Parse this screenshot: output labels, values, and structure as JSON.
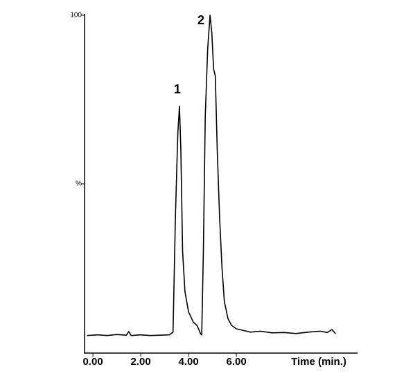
{
  "chart_data": {
    "type": "line",
    "x_label": "Time (min.)",
    "xlim": [
      -0.35,
      11.0
    ],
    "ylim": [
      0,
      100
    ],
    "xticks": [
      {
        "value": 0,
        "label": "0.00"
      },
      {
        "value": 2,
        "label": "2.00"
      },
      {
        "value": 4,
        "label": "4.00"
      },
      {
        "value": 6,
        "label": "6.00"
      }
    ],
    "yticks": [
      100,
      {
        "value": 50,
        "label": "%"
      }
    ],
    "annotations": [
      {
        "text": "1",
        "x": 3.53,
        "y": 77.8
      },
      {
        "text": "2",
        "x": 4.52,
        "y": 98.3
      }
    ],
    "series": [
      {
        "color": "#000000",
        "x": [
          -0.25,
          0.2,
          0.6,
          1.0,
          1.4,
          1.5,
          1.6,
          2.0,
          2.4,
          2.8,
          3.2,
          3.35,
          3.45,
          3.55,
          3.62,
          3.68,
          3.75,
          3.85,
          4.0,
          4.2,
          4.35,
          4.45,
          4.5,
          4.55,
          4.62,
          4.7,
          4.8,
          4.9,
          4.97,
          5.05,
          5.12,
          5.2,
          5.3,
          5.4,
          5.5,
          5.65,
          5.8,
          6.0,
          6.3,
          6.6,
          7.0,
          7.5,
          8.0,
          8.5,
          9.0,
          9.5,
          9.8,
          10.0,
          10.15
        ],
        "values": [
          5,
          5.2,
          5,
          5.3,
          5.1,
          6.2,
          5,
          5.2,
          5,
          5.1,
          5.2,
          6,
          40,
          65,
          73,
          60,
          30,
          18,
          12,
          9,
          8,
          6.5,
          5.5,
          5.2,
          30,
          70,
          90,
          100,
          95,
          84,
          82,
          60,
          40,
          25,
          15,
          10,
          8,
          7,
          6.5,
          6,
          6.3,
          5.8,
          5.9,
          5.6,
          6,
          6.3,
          5.9,
          6.8,
          5.5
        ]
      }
    ]
  }
}
